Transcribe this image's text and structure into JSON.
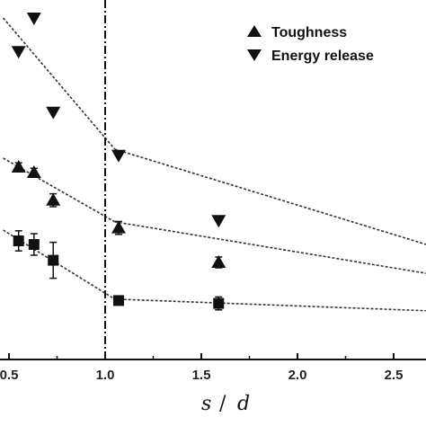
{
  "chart_data": {
    "type": "scatter",
    "xlabel": "s / d",
    "xlim": [
      0.45,
      2.7
    ],
    "ylim": [
      0,
      1
    ],
    "x_ticks": [
      "0.5",
      "1.0",
      "1.5",
      "2.0",
      "2.5"
    ],
    "x_tick_values": [
      0.5,
      1.0,
      1.5,
      2.0,
      2.5
    ],
    "vertical_reference_line": 1.0,
    "grid": false,
    "legend_position": "top-right",
    "series": [
      {
        "name": "Energy release",
        "marker": "triangle-down",
        "points": [
          {
            "x": 0.55,
            "y": 0.857
          },
          {
            "x": 0.63,
            "y": 0.95
          },
          {
            "x": 0.73,
            "y": 0.688
          },
          {
            "x": 1.07,
            "y": 0.568
          },
          {
            "x": 1.59,
            "y": 0.387
          }
        ],
        "fit_segments": [
          {
            "x": [
              0.47,
              1.05
            ],
            "y": [
              0.95,
              0.585
            ]
          },
          {
            "x": [
              1.05,
              2.7
            ],
            "y": [
              0.585,
              0.315
            ]
          }
        ]
      },
      {
        "name": "Toughness",
        "marker": "triangle-up",
        "points": [
          {
            "x": 0.55,
            "y": 0.535,
            "err": 0.012
          },
          {
            "x": 0.63,
            "y": 0.52,
            "err": 0.012
          },
          {
            "x": 0.73,
            "y": 0.443,
            "err": 0.018
          },
          {
            "x": 1.07,
            "y": 0.366,
            "err": 0.018
          },
          {
            "x": 1.59,
            "y": 0.27,
            "err": 0.015
          }
        ],
        "fit_segments": [
          {
            "x": [
              0.47,
              1.05
            ],
            "y": [
              0.56,
              0.383
            ]
          },
          {
            "x": [
              1.05,
              2.7
            ],
            "y": [
              0.383,
              0.237
            ]
          }
        ]
      },
      {
        "name": "",
        "marker": "square",
        "points": [
          {
            "x": 0.55,
            "y": 0.33,
            "err": 0.028
          },
          {
            "x": 0.63,
            "y": 0.32,
            "err": 0.03
          },
          {
            "x": 0.73,
            "y": 0.276,
            "err": 0.05
          },
          {
            "x": 1.07,
            "y": 0.164,
            "err": 0.008
          },
          {
            "x": 1.59,
            "y": 0.156,
            "err": 0.018
          }
        ],
        "fit_segments": [
          {
            "x": [
              0.47,
              1.05
            ],
            "y": [
              0.36,
              0.168
            ]
          },
          {
            "x": [
              1.05,
              2.7
            ],
            "y": [
              0.168,
              0.135
            ]
          }
        ]
      }
    ]
  },
  "legend": [
    {
      "label": "Toughness",
      "marker": "triangle-up"
    },
    {
      "label": "Energy release",
      "marker": "triangle-down"
    }
  ],
  "axis": {
    "x_title_main": "s",
    "x_title_sep": "/",
    "x_title_denom": "d"
  }
}
